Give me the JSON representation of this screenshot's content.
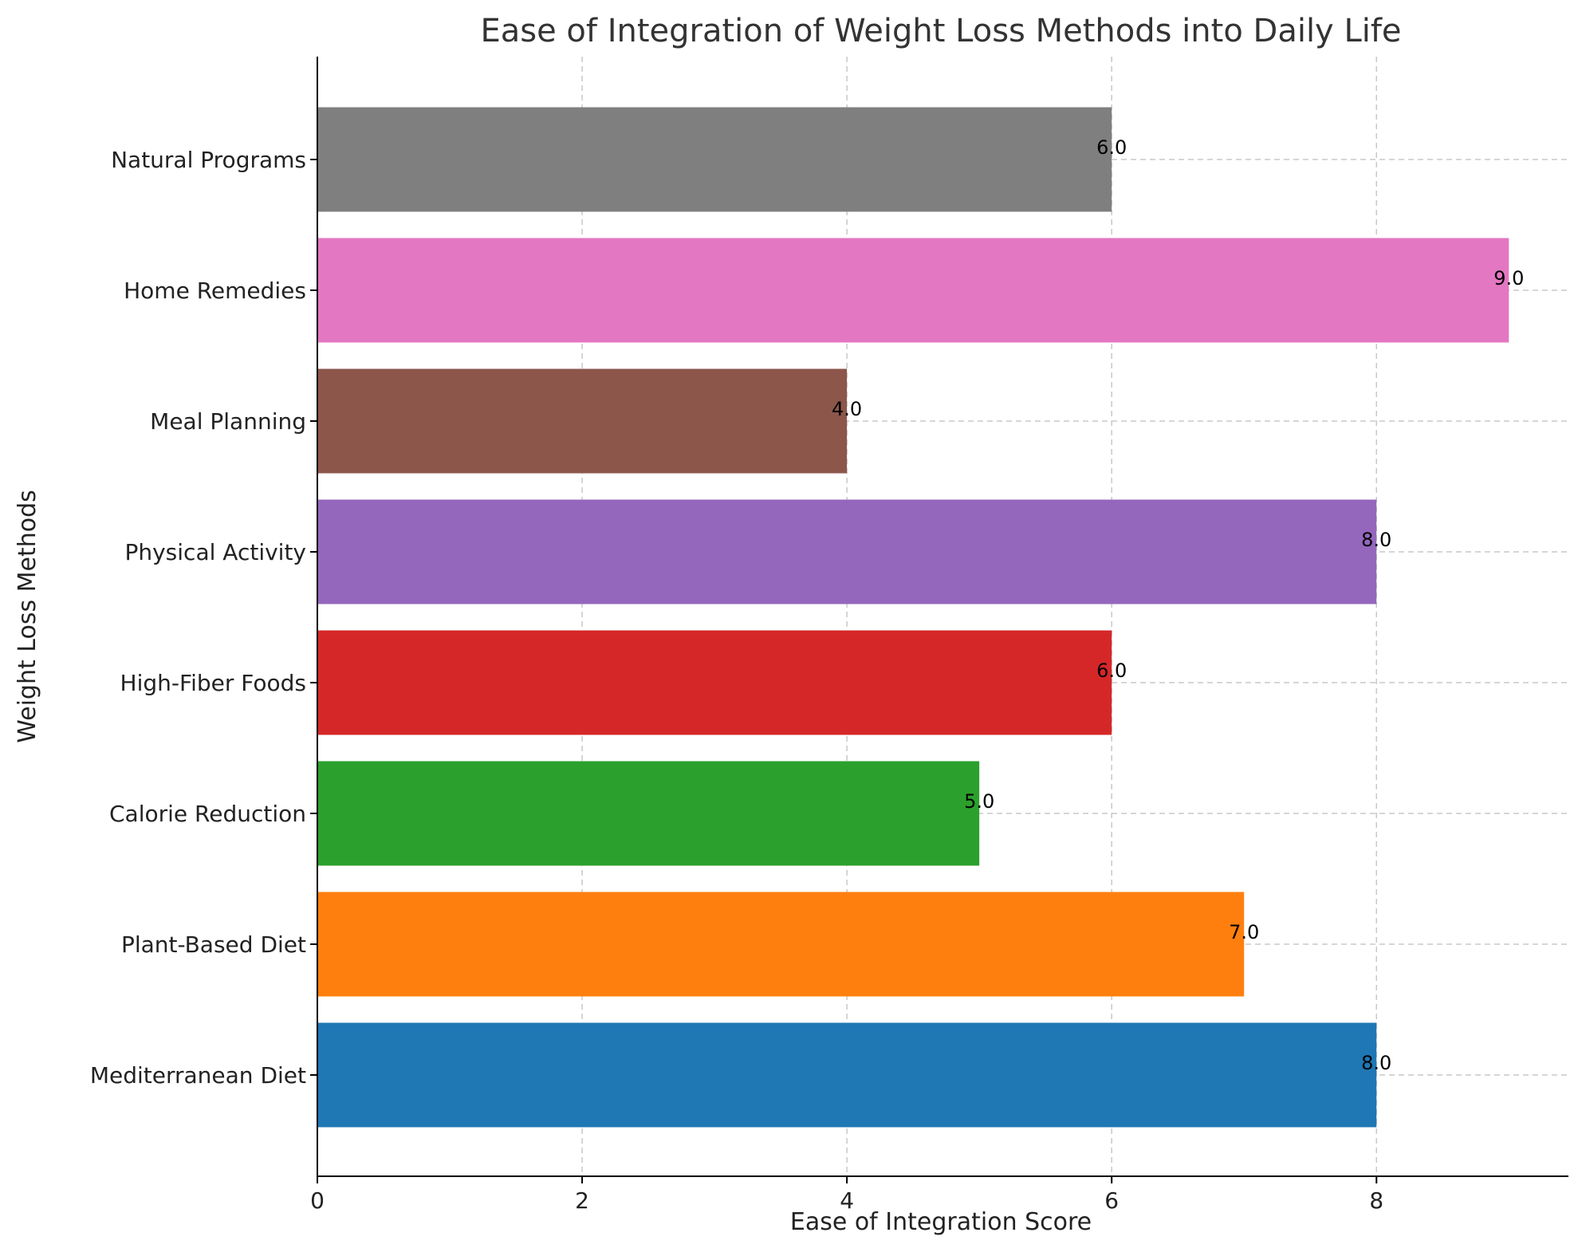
{
  "chart_data": {
    "type": "bar",
    "orientation": "horizontal",
    "title": "Ease of Integration of Weight Loss Methods into Daily Life",
    "xlabel": "Ease of Integration Score",
    "ylabel": "Weight Loss Methods",
    "categories": [
      "Mediterranean Diet",
      "Plant-Based Diet",
      "Calorie Reduction",
      "High-Fiber Foods",
      "Physical Activity",
      "Meal Planning",
      "Home Remedies",
      "Natural Programs"
    ],
    "values": [
      8,
      7,
      5,
      6,
      8,
      4,
      9,
      6
    ],
    "data_labels": [
      "8.0",
      "7.0",
      "5.0",
      "6.0",
      "8.0",
      "4.0",
      "9.0",
      "6.0"
    ],
    "colors": [
      "#1f77b4",
      "#ff7f0e",
      "#2ca02c",
      "#d62728",
      "#9467bd",
      "#8c564b",
      "#e377c2",
      "#7f7f7f"
    ],
    "xlim": [
      0,
      9.45
    ],
    "xticks": [
      0,
      2,
      4,
      6,
      8
    ],
    "xtick_labels": [
      "0",
      "2",
      "4",
      "6",
      "8"
    ],
    "grid": true,
    "grid_style": "dashed"
  }
}
